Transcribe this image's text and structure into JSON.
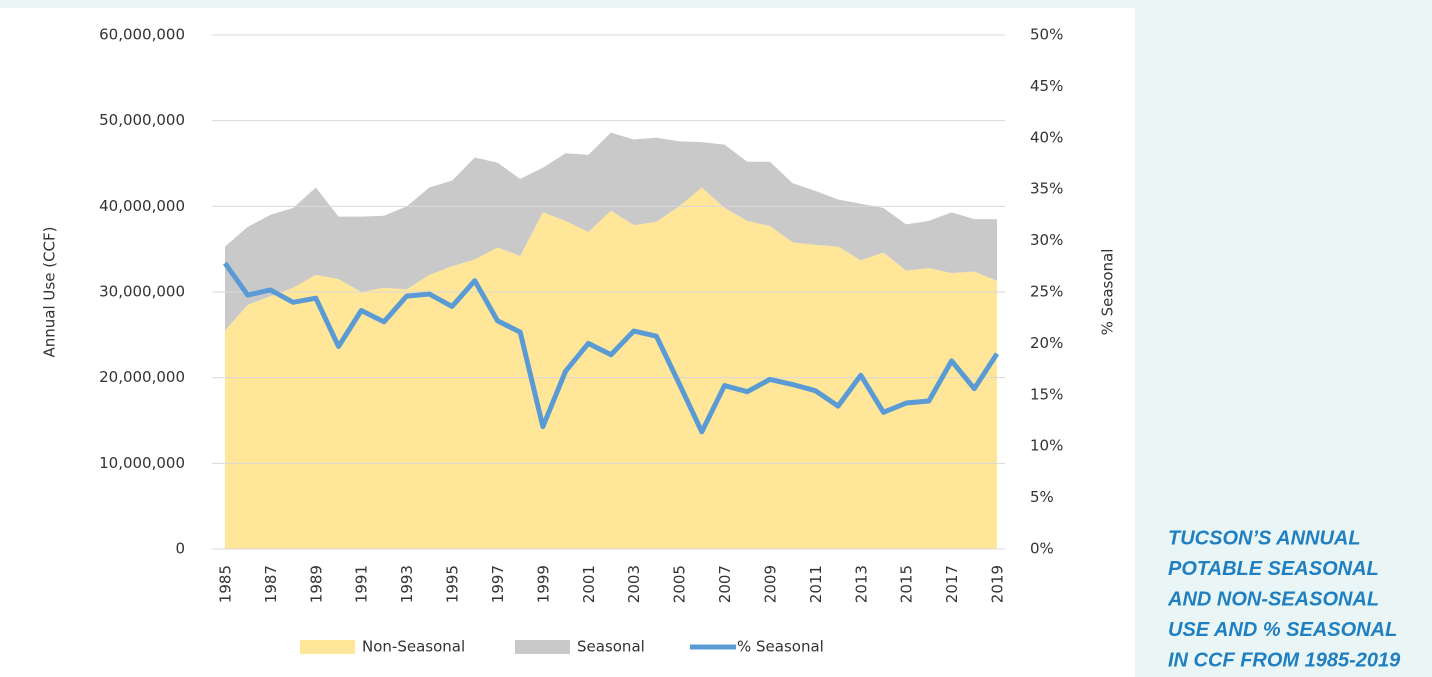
{
  "chart_data": {
    "type": "stacked-area-line",
    "y_label": "Annual Use (CCF)",
    "y2_label": "% Seasonal",
    "caption": [
      "TUCSON’S ANNUAL",
      "POTABLE SEASONAL",
      "AND NON-SEASONAL",
      "USE AND % SEASONAL",
      "IN CCF FROM 1985-2019"
    ],
    "categories": [
      "1985",
      null,
      "1987",
      null,
      "1989",
      null,
      "1991",
      null,
      "1993",
      null,
      "1995",
      null,
      "1997",
      null,
      "1999",
      null,
      "2001",
      null,
      "2003",
      null,
      "2005",
      null,
      "2007",
      null,
      "2009",
      null,
      "2011",
      null,
      "2013",
      null,
      "2015",
      null,
      "2017",
      null,
      "2019"
    ],
    "series": [
      {
        "name": "Non-Seasonal",
        "color": "#ffe699",
        "kind": "area",
        "values": [
          25500000,
          28500000,
          29500000,
          30500000,
          32000000,
          31500000,
          30000000,
          30500000,
          30300000,
          32000000,
          33000000,
          33800000,
          35200000,
          34200000,
          39300000,
          38300000,
          37000000,
          39500000,
          37800000,
          38200000,
          40000000,
          42200000,
          39800000,
          38300000,
          37700000,
          35800000,
          35500000,
          35300000,
          33700000,
          34600000,
          32500000,
          32800000,
          32200000,
          32400000,
          31300000
        ]
      },
      {
        "name": "Seasonal",
        "color": "#c9c9c9",
        "kind": "area",
        "values": [
          9800000,
          9100000,
          9500000,
          9300000,
          10200000,
          7300000,
          8800000,
          8400000,
          9700000,
          10200000,
          10000000,
          11900000,
          9900000,
          9000000,
          5200000,
          7900000,
          9000000,
          9100000,
          10000000,
          9800000,
          7600000,
          5300000,
          7400000,
          6900000,
          7500000,
          6900000,
          6300000,
          5500000,
          6600000,
          5200000,
          5400000,
          5500000,
          7100000,
          6100000,
          7200000
        ]
      },
      {
        "name": "% Seasonal",
        "color": "#5b9bd5",
        "kind": "line",
        "axis": "y2",
        "values": [
          27.8,
          24.7,
          25.2,
          24,
          24.4,
          19.7,
          23.2,
          22.1,
          24.6,
          24.8,
          23.6,
          26.1,
          22.2,
          21.1,
          11.9,
          17.3,
          20,
          18.9,
          21.2,
          20.7,
          16.1,
          11.4,
          15.9,
          15.3,
          16.5,
          16,
          15.4,
          13.9,
          16.9,
          13.3,
          14.2,
          14.4,
          18.3,
          15.6,
          19
        ]
      }
    ],
    "ylim": [
      0,
      60000000
    ],
    "yticks": [
      0,
      {
        "value": 10000000,
        "label": "10,000,000"
      },
      {
        "value": 20000000,
        "label": "20,000,000"
      },
      {
        "value": 30000000,
        "label": "30,000,000"
      },
      {
        "value": 40000000,
        "label": "40,000,000"
      },
      {
        "value": 50000000,
        "label": "50,000,000"
      },
      {
        "value": 60000000,
        "label": "60,000,000"
      }
    ],
    "y2lim": [
      0,
      50
    ],
    "y2ticks": [
      {
        "value": 0,
        "label": "0%"
      },
      {
        "value": 5,
        "label": "5%"
      },
      {
        "value": 10,
        "label": "10%"
      },
      {
        "value": 15,
        "label": "15%"
      },
      {
        "value": 20,
        "label": "20%"
      },
      {
        "value": 25,
        "label": "25%"
      },
      {
        "value": 30,
        "label": "30%"
      },
      {
        "value": 35,
        "label": "35%"
      },
      {
        "value": 40,
        "label": "40%"
      },
      {
        "value": 45,
        "label": "45%"
      },
      {
        "value": 50,
        "label": "50%"
      }
    ],
    "grid": true,
    "legend": "bottom"
  }
}
